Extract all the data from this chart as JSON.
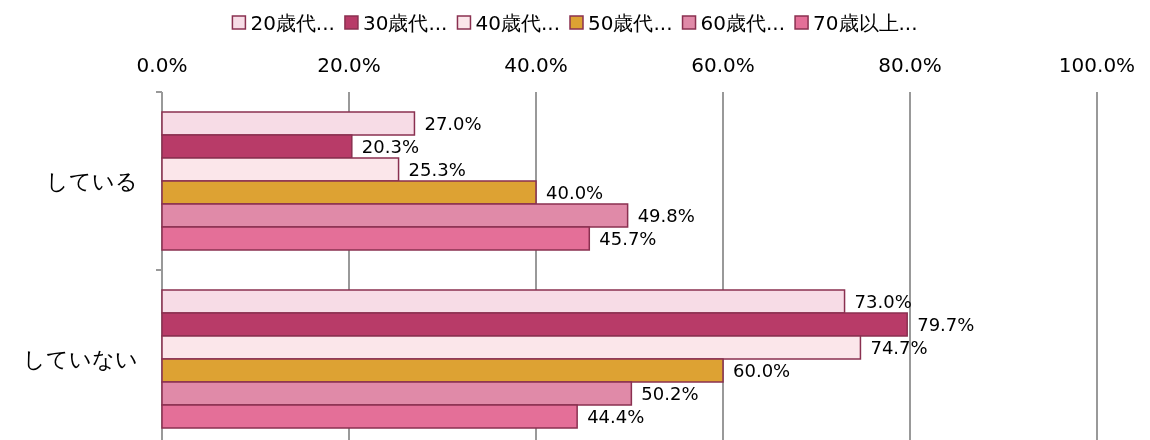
{
  "chart_data": {
    "type": "bar",
    "orientation": "horizontal",
    "categories": [
      "している",
      "していない"
    ],
    "series": [
      {
        "name": "20歳代...",
        "color": "#f7dce6",
        "values": [
          27.0,
          73.0
        ],
        "value_labels": [
          "27.0%",
          "73.0%"
        ]
      },
      {
        "name": "30歳代...",
        "color": "#b83b68",
        "values": [
          20.3,
          79.7
        ],
        "value_labels": [
          "20.3%",
          "79.7%"
        ]
      },
      {
        "name": "40歳代...",
        "color": "#fbe6ea",
        "values": [
          25.3,
          74.7
        ],
        "value_labels": [
          "25.3%",
          "74.7%"
        ]
      },
      {
        "name": "50歳代...",
        "color": "#dda233",
        "values": [
          40.0,
          60.0
        ],
        "value_labels": [
          "40.0%",
          "60.0%"
        ]
      },
      {
        "name": "60歳代...",
        "color": "#e08aa8",
        "values": [
          49.8,
          50.2
        ],
        "value_labels": [
          "49.8%",
          "50.2%"
        ]
      },
      {
        "name": "70歳以上...",
        "color": "#e46f98",
        "values": [
          45.7,
          44.4
        ],
        "value_labels": [
          "45.7%",
          "44.4%"
        ]
      }
    ],
    "xlim": [
      0,
      100
    ],
    "xticks": [
      {
        "value": 0,
        "label": "0.0%"
      },
      {
        "value": 20,
        "label": "20.0%"
      },
      {
        "value": 40,
        "label": "40.0%"
      },
      {
        "value": 60,
        "label": "60.0%"
      },
      {
        "value": 80,
        "label": "80.0%"
      },
      {
        "value": 100,
        "label": "100.0%"
      }
    ],
    "grid": "x",
    "legend": "top"
  }
}
